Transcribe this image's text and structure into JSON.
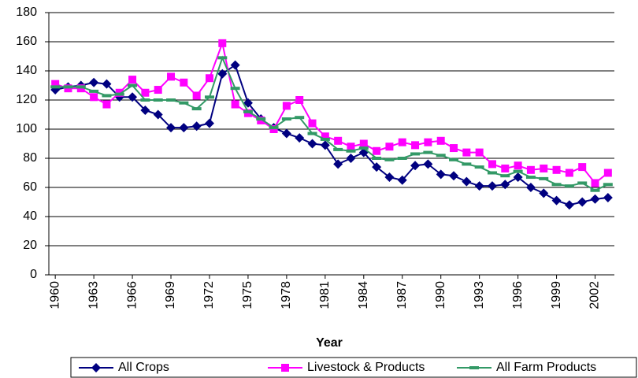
{
  "chart_data": {
    "type": "line",
    "x": [
      1960,
      1961,
      1962,
      1963,
      1964,
      1965,
      1966,
      1967,
      1968,
      1969,
      1970,
      1971,
      1972,
      1973,
      1974,
      1975,
      1976,
      1977,
      1978,
      1979,
      1980,
      1981,
      1982,
      1983,
      1984,
      1985,
      1986,
      1987,
      1988,
      1989,
      1990,
      1991,
      1992,
      1993,
      1994,
      1995,
      1996,
      1997,
      1998,
      1999,
      2000,
      2001,
      2002,
      2003
    ],
    "series": [
      {
        "name": "All Crops",
        "color": "#000080",
        "marker": "diamond",
        "values": [
          127,
          129,
          130,
          132,
          131,
          122,
          122,
          113,
          110,
          101,
          101,
          102,
          104,
          138,
          144,
          118,
          107,
          101,
          97,
          94,
          90,
          89,
          76,
          80,
          84,
          74,
          67,
          65,
          75,
          76,
          69,
          68,
          64,
          61,
          61,
          62,
          67,
          60,
          56,
          51,
          48,
          50,
          52,
          53
        ]
      },
      {
        "name": "Livestock & Products",
        "color": "#ff00ff",
        "marker": "square",
        "values": [
          131,
          128,
          128,
          122,
          117,
          125,
          134,
          125,
          127,
          136,
          132,
          123,
          135,
          159,
          117,
          111,
          106,
          100,
          116,
          120,
          104,
          95,
          92,
          88,
          90,
          85,
          88,
          91,
          89,
          91,
          92,
          87,
          84,
          84,
          76,
          73,
          75,
          72,
          73,
          72,
          70,
          74,
          63,
          70
        ]
      },
      {
        "name": "All Farm Products",
        "color": "#339966",
        "marker": "dash",
        "values": [
          129,
          129,
          129,
          126,
          123,
          124,
          130,
          120,
          120,
          120,
          118,
          114,
          122,
          149,
          128,
          112,
          107,
          101,
          107,
          108,
          97,
          93,
          86,
          85,
          87,
          80,
          79,
          80,
          83,
          84,
          82,
          79,
          76,
          74,
          70,
          68,
          71,
          67,
          66,
          62,
          61,
          63,
          58,
          62
        ]
      }
    ],
    "x_label": "Year",
    "xlim": [
      1959.5,
      2003.5
    ],
    "xticks": [
      1960,
      1963,
      1966,
      1969,
      1972,
      1975,
      1978,
      1981,
      1984,
      1987,
      1990,
      1993,
      1996,
      1999,
      2002
    ],
    "ylim": [
      0,
      180
    ],
    "yticks": [
      0,
      20,
      40,
      60,
      80,
      100,
      120,
      140,
      160,
      180
    ],
    "grid": true,
    "legend": "bottom"
  }
}
